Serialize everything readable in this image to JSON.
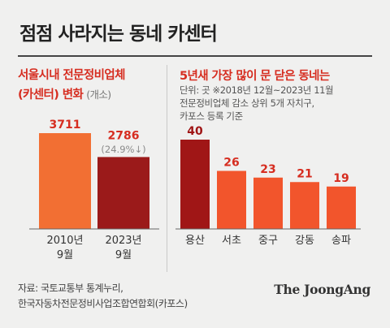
{
  "title": "점점 사라지는 동네 카센터",
  "colors": {
    "bar_light": "#f26f33",
    "bar_dark": "#9b1a1a",
    "bar_top": "#a01616",
    "bar_rest": "#f2552c",
    "value_red": "#d62d20"
  },
  "left_panel": {
    "heading_line1": "서울시내 전문정비업체",
    "heading_line2": "(카센터) 변화",
    "unit": "(개소)",
    "change_note": "(24.9%",
    "change_icon": "down-arrow-icon"
  },
  "right_panel": {
    "heading": "5년새 가장 많이 문 닫은 동네는",
    "sub_line1": "단위: 곳  ※2018년 12월~2023년 11월",
    "sub_line2": "전문정비업체 감소 상위 5개 자치구,",
    "sub_line3": "카포스 등록 기준"
  },
  "chart_data": [
    {
      "type": "bar",
      "categories": [
        "2010년 9월",
        "2023년 9월"
      ],
      "category_lines": [
        [
          "2010년",
          "9월"
        ],
        [
          "2023년",
          "9월"
        ]
      ],
      "values": [
        3711,
        2786
      ],
      "ylim": [
        0,
        3711
      ],
      "annotation": "(24.9%↓)"
    },
    {
      "type": "bar",
      "categories": [
        "용산",
        "서초",
        "중구",
        "강동",
        "송파"
      ],
      "values": [
        40,
        26,
        23,
        21,
        19
      ],
      "ylim": [
        0,
        40
      ]
    }
  ],
  "footer": {
    "line1": "자료: 국토교통부 통계누리,",
    "line2": "한국자동차전문정비사업조합연합회(카포스)"
  },
  "logo": "The JoongAng"
}
